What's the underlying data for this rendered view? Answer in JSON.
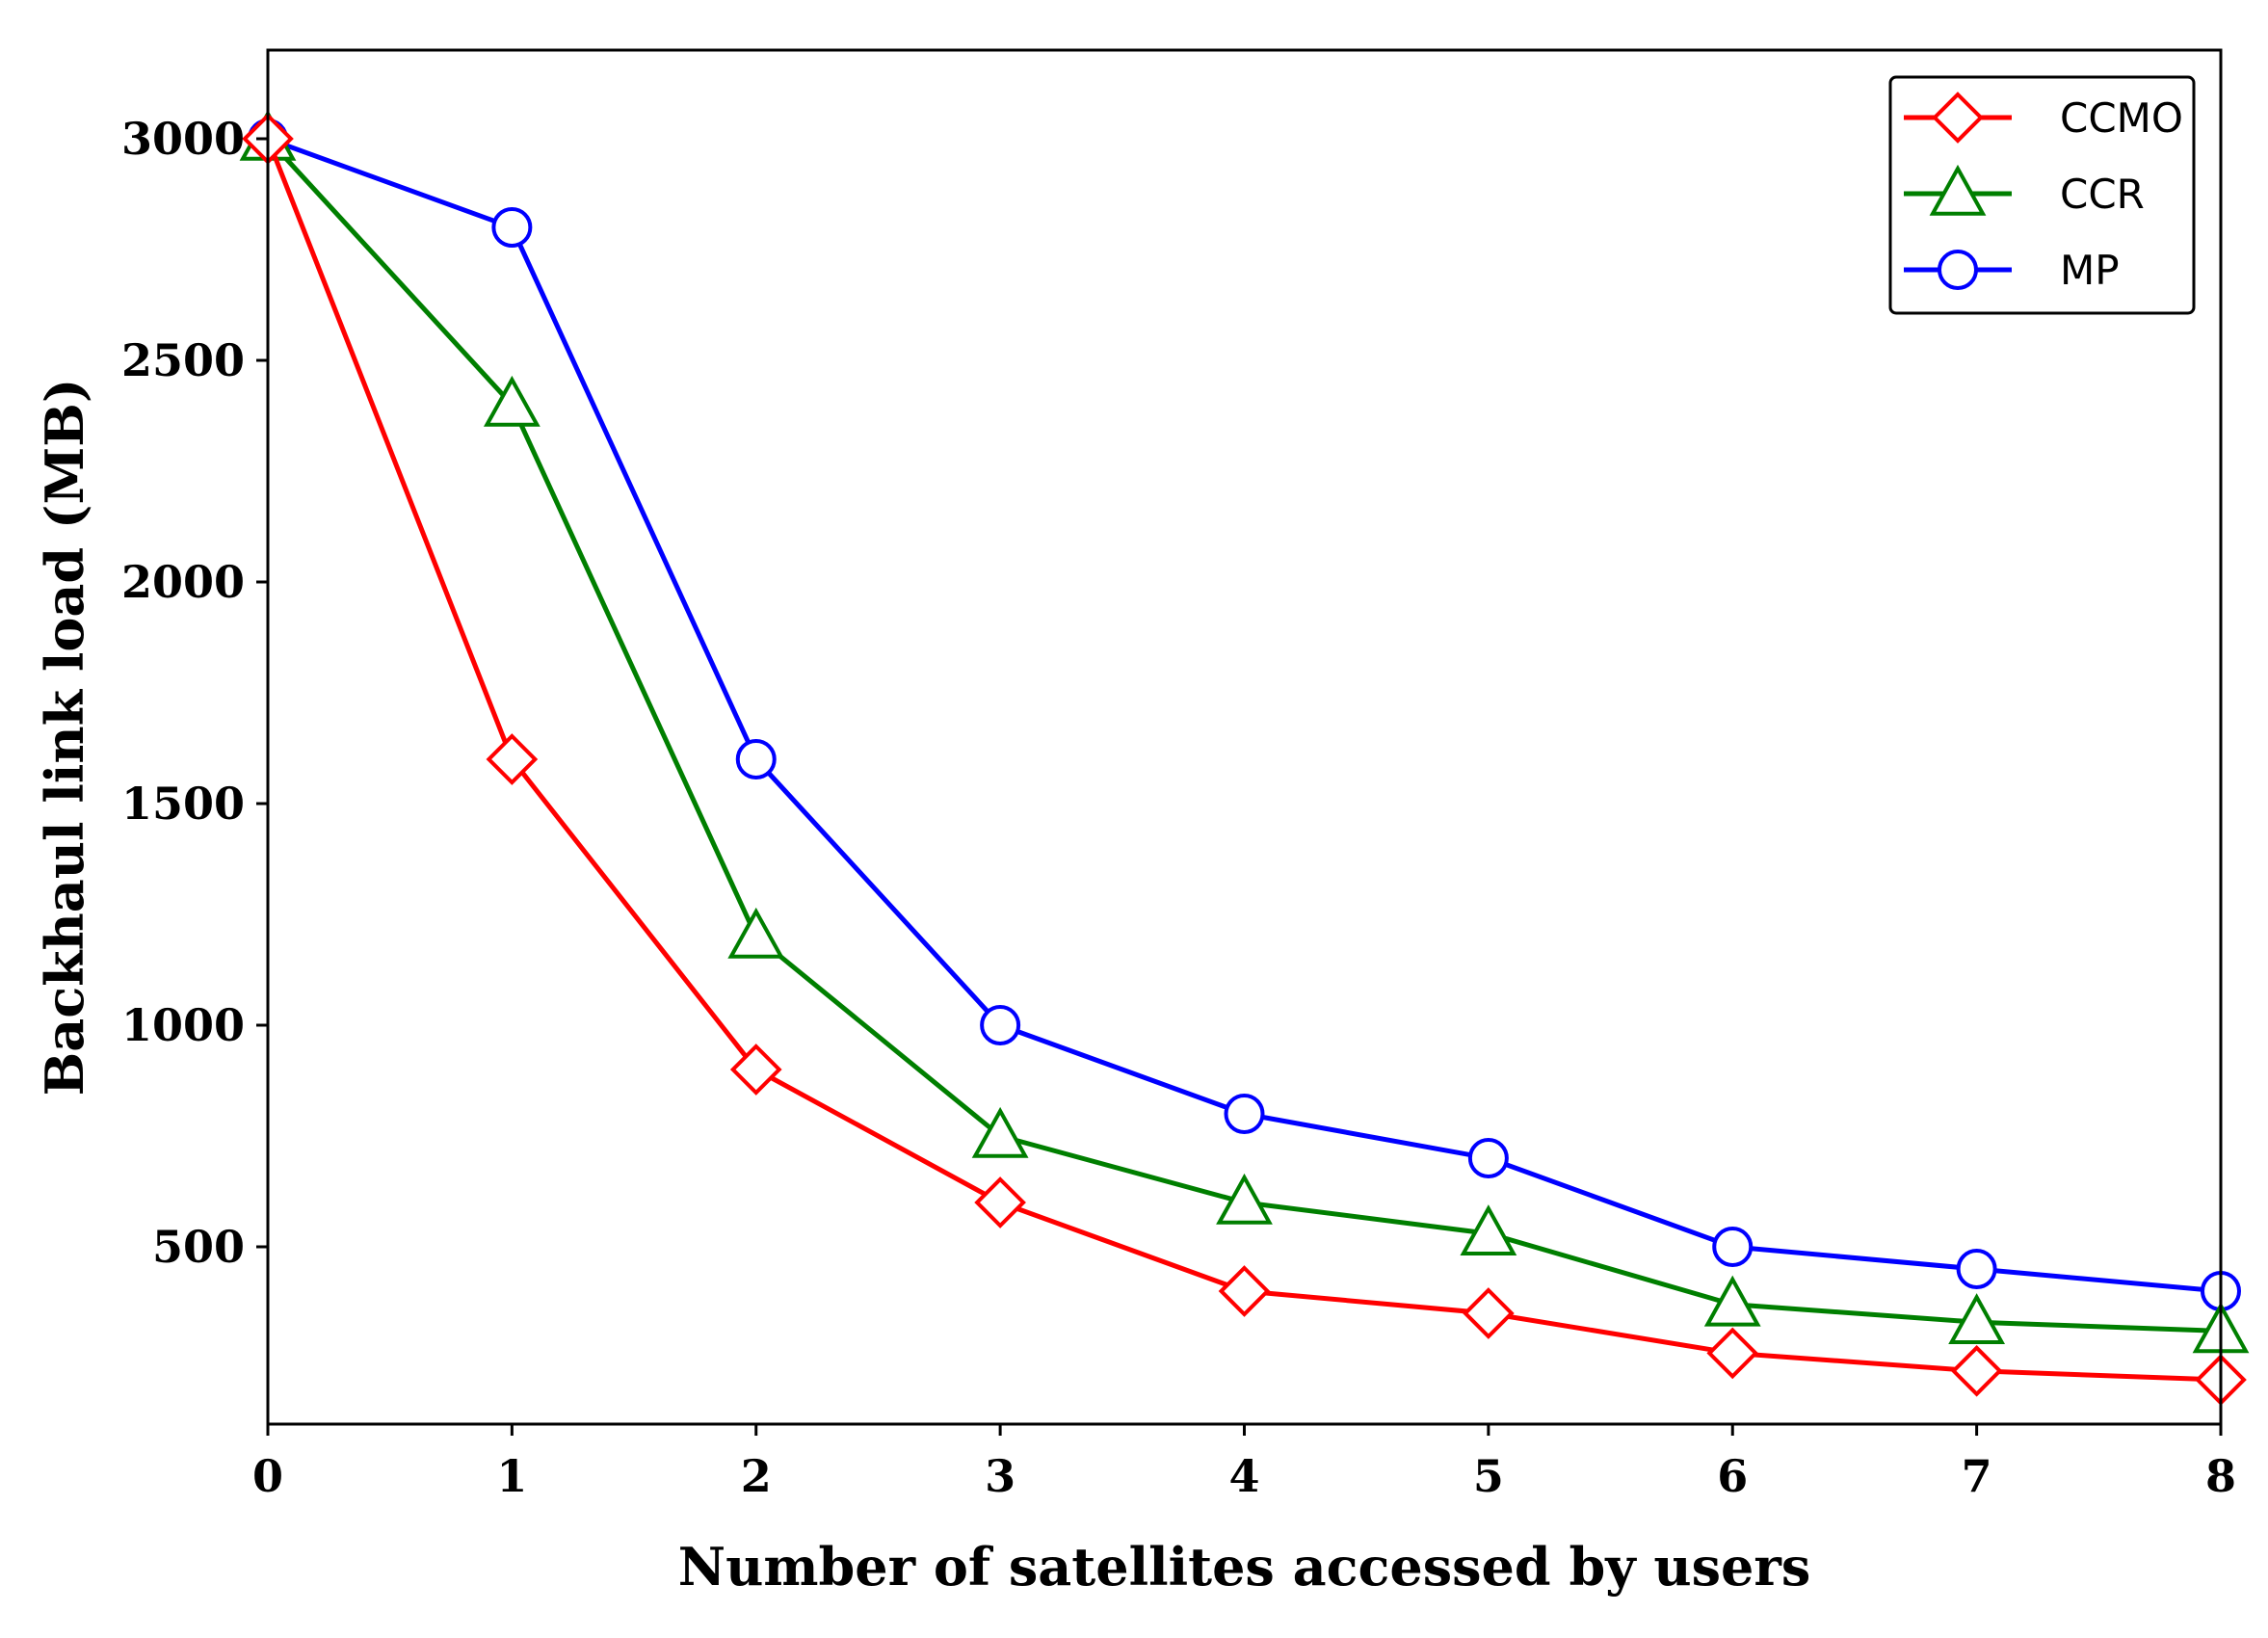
{
  "chart_data": {
    "type": "line",
    "title": "",
    "xlabel": "Number of satellites accessed by users",
    "ylabel": "Backhaul link load (MB)",
    "x": [
      0,
      1,
      2,
      3,
      4,
      5,
      6,
      7,
      8
    ],
    "xticks": [
      "0",
      "1",
      "2",
      "3",
      "4",
      "5",
      "6",
      "7",
      "8"
    ],
    "yticks": [
      "500",
      "1000",
      "1500",
      "2000",
      "2500",
      "3000"
    ],
    "xlim": [
      0,
      8
    ],
    "ylim": [
      100,
      3200
    ],
    "grid": false,
    "legend_position": "top-right",
    "series": [
      {
        "name": "CCMO",
        "color": "#ff0000",
        "marker": "diamond",
        "values": [
          3000,
          1600,
          900,
          600,
          400,
          350,
          260,
          220,
          200
        ]
      },
      {
        "name": "CCR",
        "color": "#007f00",
        "marker": "triangle",
        "values": [
          3000,
          2400,
          1200,
          750,
          600,
          530,
          370,
          330,
          310
        ]
      },
      {
        "name": "MP",
        "color": "#0000ff",
        "marker": "circle",
        "values": [
          3000,
          2800,
          1600,
          1000,
          800,
          700,
          500,
          450,
          400
        ]
      }
    ]
  }
}
